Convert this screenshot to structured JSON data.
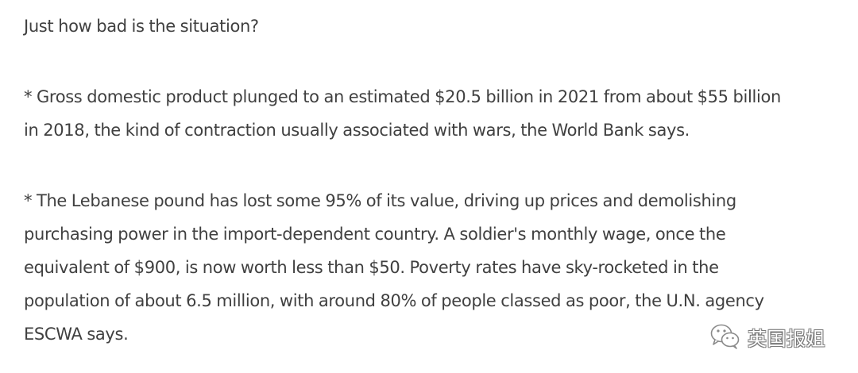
{
  "article": {
    "heading": "Just how bad is the situation?",
    "paragraph1": {
      "lines": [
        "* Gross domestic product plunged to an estimated $20.5 billion in 2021 from about $55 billion",
        "in 2018, the kind of contraction usually associated with wars, the World Bank says."
      ]
    },
    "paragraph2": {
      "lines": [
        "* The Lebanese pound has lost some 95% of its value, driving up prices and demolishing",
        "purchasing power in the import-dependent country. A soldier's monthly wage, once the",
        "equivalent of $900, is now worth less than $50. Poverty rates have sky-rocketed in the",
        "population of about 6.5 million, with around 80% of people classed as poor, the U.N. agency",
        "ESCWA says."
      ]
    }
  },
  "watermark": {
    "icon": "wechat-icon",
    "text": "英国报姐"
  }
}
